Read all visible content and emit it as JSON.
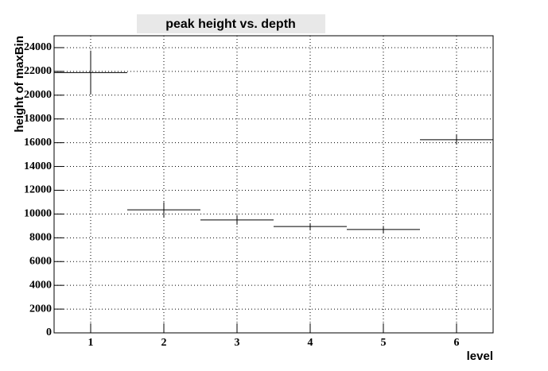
{
  "chart_data": {
    "type": "errorbar",
    "title": "peak height vs. depth",
    "x_label": "level",
    "y_label": "height of maxBin",
    "x": [
      1,
      2,
      3,
      4,
      5,
      6
    ],
    "values": [
      21900,
      10350,
      9500,
      8950,
      8700,
      16250
    ],
    "errors": [
      1850,
      650,
      400,
      270,
      300,
      400
    ],
    "xerr": [
      0.5,
      0.5,
      0.5,
      0.5,
      0.5,
      0.5
    ],
    "xlim": [
      0.5,
      6.5
    ],
    "xticks": [
      1,
      2,
      3,
      4,
      5,
      6
    ],
    "ylim": [
      0,
      25000
    ],
    "yticks": [
      0,
      2000,
      4000,
      6000,
      8000,
      10000,
      12000,
      14000,
      16000,
      18000,
      20000,
      22000,
      24000
    ],
    "grid": true,
    "color": "#000000"
  }
}
